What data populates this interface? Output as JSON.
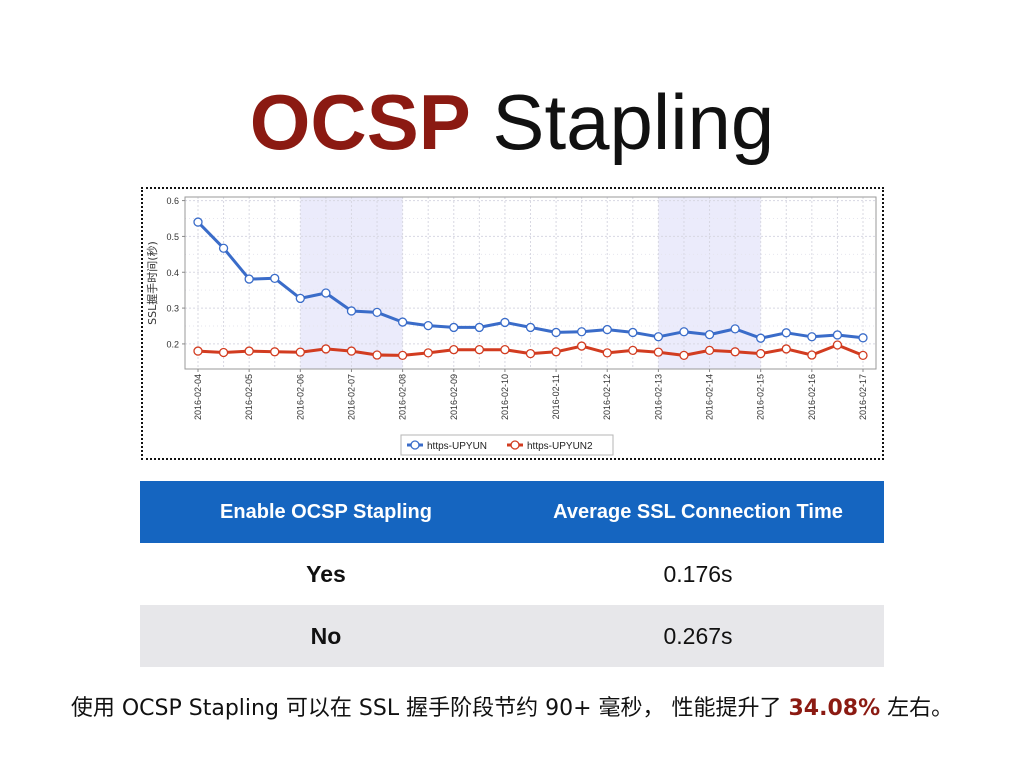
{
  "title": {
    "strong": "OCSP",
    "rest": "Stapling"
  },
  "chart_data": {
    "type": "line",
    "ylabel": "SSL握手时间(秒)",
    "xlabel": "",
    "ylim": [
      0.13,
      0.61
    ],
    "yticks": [
      0.2,
      0.3,
      0.4,
      0.5,
      0.6
    ],
    "grid": true,
    "legend_position": "bottom-center",
    "tick_labels": [
      "2016-02-04",
      "2016-02-05",
      "2016-02-06",
      "2016-02-07",
      "2016-02-08",
      "2016-02-09",
      "2016-02-10",
      "2016-02-11",
      "2016-02-12",
      "2016-02-13",
      "2016-02-14",
      "2016-02-15",
      "2016-02-16",
      "2016-02-17"
    ],
    "x_start": 0,
    "x_end": 13,
    "shaded_ranges": [
      [
        2,
        4
      ],
      [
        9,
        11
      ]
    ],
    "series": [
      {
        "name": "https-UPYUN",
        "color": "#3a6cc9",
        "x": [
          0,
          0.5,
          1,
          1.5,
          2,
          2.5,
          3,
          3.5,
          4,
          4.5,
          5,
          5.5,
          6,
          6.5,
          7,
          7.5,
          8,
          8.5,
          9,
          9.5,
          10,
          10.5,
          11,
          11.5,
          12,
          12.5,
          13
        ],
        "values": [
          0.54,
          0.467,
          0.381,
          0.383,
          0.327,
          0.342,
          0.292,
          0.288,
          0.261,
          0.251,
          0.246,
          0.246,
          0.26,
          0.246,
          0.232,
          0.234,
          0.24,
          0.232,
          0.22,
          0.234,
          0.226,
          0.242,
          0.216,
          0.231,
          0.22,
          0.225,
          0.217
        ]
      },
      {
        "name": "https-UPYUN2",
        "color": "#d23c20",
        "x": [
          0,
          0.5,
          1,
          1.5,
          2,
          2.5,
          3,
          3.5,
          4,
          4.5,
          5,
          5.5,
          6,
          6.5,
          7,
          7.5,
          8,
          8.5,
          9,
          9.5,
          10,
          10.5,
          11,
          11.5,
          12,
          12.5,
          13
        ],
        "values": [
          0.18,
          0.176,
          0.18,
          0.178,
          0.177,
          0.186,
          0.18,
          0.169,
          0.168,
          0.175,
          0.184,
          0.184,
          0.184,
          0.173,
          0.178,
          0.194,
          0.175,
          0.182,
          0.177,
          0.168,
          0.182,
          0.178,
          0.173,
          0.186,
          0.169,
          0.197,
          0.168
        ]
      }
    ]
  },
  "table": {
    "headers": [
      "Enable OCSP Stapling",
      "Average SSL Connection Time"
    ],
    "rows": [
      {
        "label": "Yes",
        "value": "0.176s"
      },
      {
        "label": "No",
        "value": "0.267s"
      }
    ]
  },
  "summary": {
    "pre": "使用 OCSP Stapling 可以在 SSL 握手阶段节约 90+ 毫秒， 性能提升了 ",
    "highlight": "34.08%",
    "post": " 左右。"
  }
}
